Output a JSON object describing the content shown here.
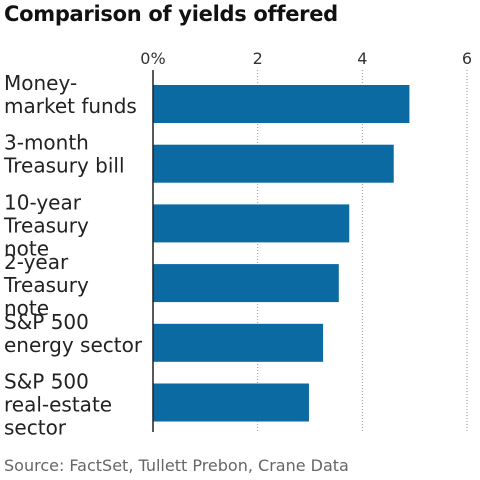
{
  "chart_data": {
    "type": "bar",
    "orientation": "horizontal",
    "title": "Comparison of yields offered",
    "categories": [
      [
        "Money-",
        "market funds"
      ],
      [
        "3-month",
        "Treasury bill"
      ],
      [
        "10-year",
        "Treasury",
        "note"
      ],
      [
        "2-year",
        "Treasury",
        "note"
      ],
      [
        "S&P 500",
        "energy sector"
      ],
      [
        "S&P 500",
        "real-estate",
        "sector"
      ]
    ],
    "values": [
      4.9,
      4.6,
      3.75,
      3.55,
      3.25,
      2.98
    ],
    "xlim": [
      0,
      6
    ],
    "xticks": [
      0,
      2,
      4,
      6
    ],
    "xtick_labels": [
      "0%",
      "2",
      "4",
      "6"
    ],
    "xlabel": "",
    "ylabel": "",
    "grid": true,
    "bar_color": "#0a6aa1",
    "source": "Source: FactSet, Tullett Prebon, Crane Data"
  }
}
